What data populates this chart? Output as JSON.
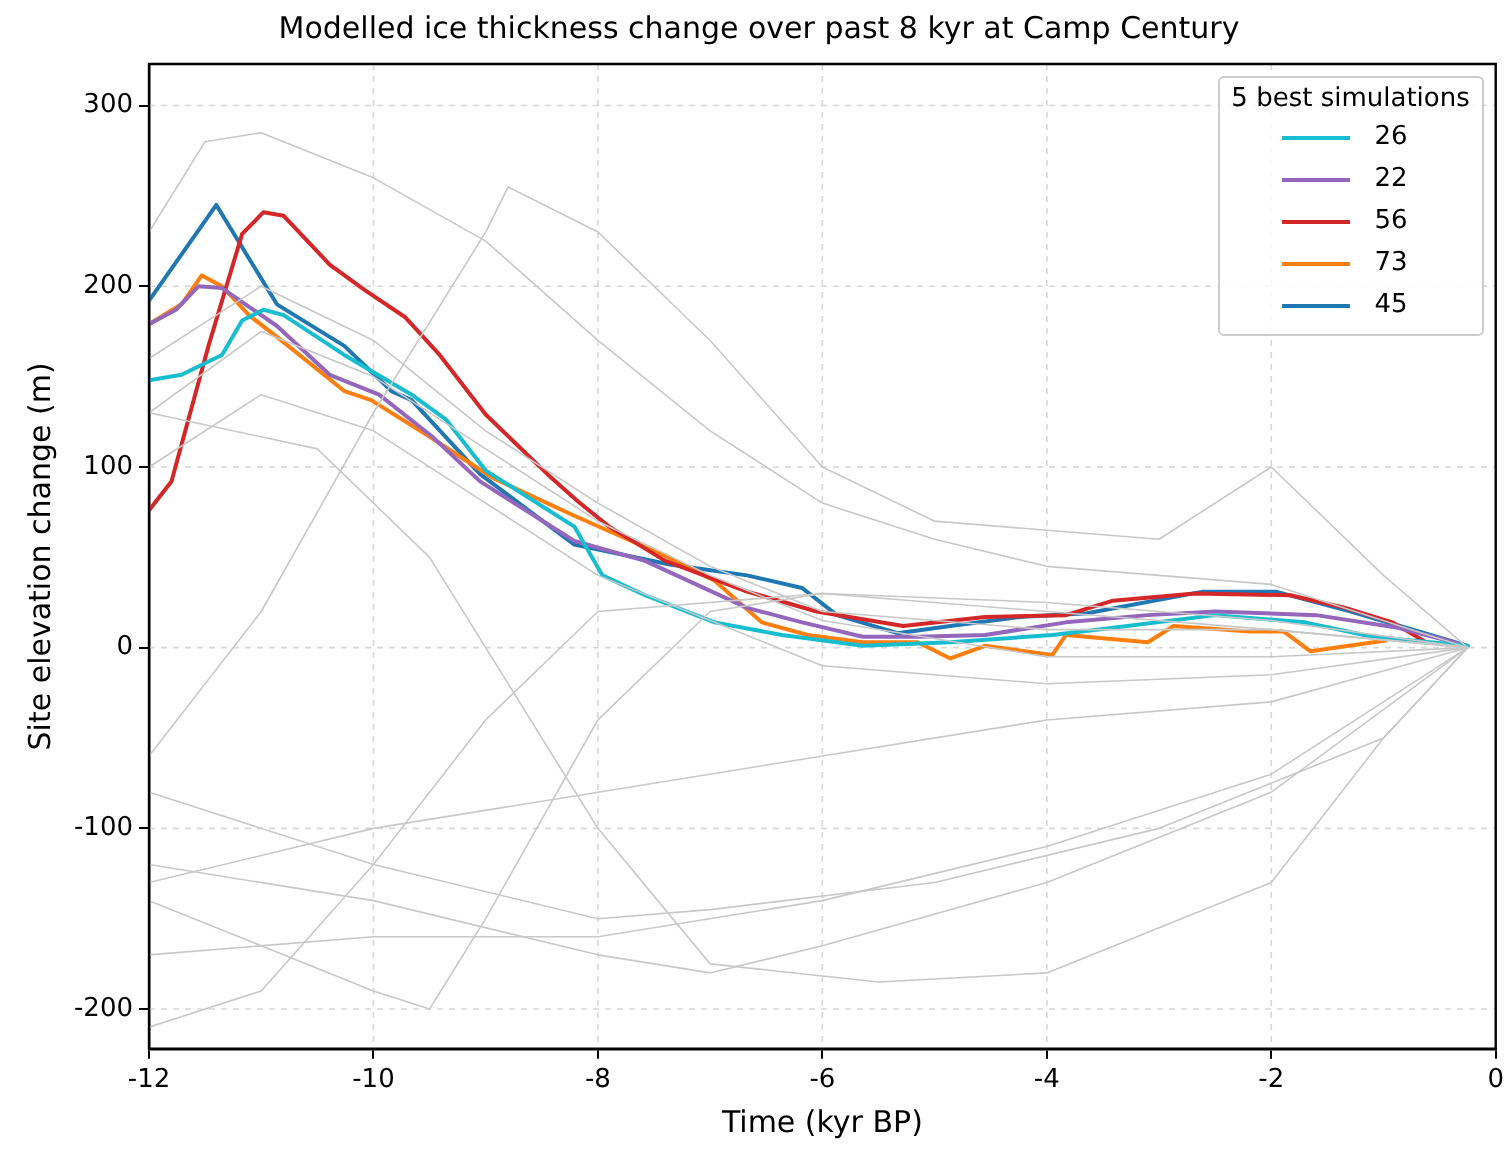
{
  "chart_data": {
    "type": "line",
    "title": "Modelled ice thickness change over past 8 kyr at Camp Century",
    "xlabel": "Time (kyr BP)",
    "ylabel": "Site elevation change (m)",
    "legend_title": "5 best simulations",
    "xlim": [
      -12,
      0
    ],
    "xticks": [
      -12,
      -10,
      -8,
      -6,
      -4,
      -2,
      0
    ],
    "ylim": [
      -222,
      323
    ],
    "yticks": [
      -200,
      -100,
      0,
      100,
      200,
      300
    ],
    "grid": true,
    "legend": "top right",
    "marker": "none",
    "line_style": "solid",
    "series": [
      {
        "color": "#c8c8c8",
        "x": [
          -12,
          -11.5,
          -11,
          -10,
          -9,
          -8,
          -7,
          -6,
          -5,
          -4,
          -2,
          -0.25
        ],
        "values": [
          230,
          280,
          285,
          260,
          225,
          170,
          120,
          80,
          60,
          45,
          35,
          0
        ]
      },
      {
        "color": "#c8c8c8",
        "x": [
          -12,
          -11,
          -10,
          -9,
          -8,
          -7,
          -6,
          -4,
          -2,
          -0.25
        ],
        "values": [
          160,
          200,
          170,
          120,
          80,
          45,
          20,
          10,
          10,
          0
        ]
      },
      {
        "color": "#c8c8c8",
        "x": [
          -12,
          -11,
          -10,
          -9,
          -8.8,
          -8,
          -7,
          -6,
          -5,
          -3,
          -2,
          -1,
          -0.25
        ],
        "values": [
          -60,
          20,
          130,
          230,
          255,
          230,
          170,
          100,
          70,
          60,
          100,
          40,
          0
        ]
      },
      {
        "color": "#c8c8c8",
        "x": [
          -12,
          -11,
          -10,
          -9,
          -8,
          -6,
          -4,
          -2,
          -0.25
        ],
        "values": [
          -210,
          -190,
          -120,
          -40,
          20,
          30,
          20,
          10,
          0
        ]
      },
      {
        "color": "#c8c8c8",
        "x": [
          -12,
          -10,
          -8,
          -7,
          -5,
          -3,
          -1,
          -0.25
        ],
        "values": [
          -80,
          -120,
          -150,
          -145,
          -130,
          -100,
          -50,
          0
        ]
      },
      {
        "color": "#c8c8c8",
        "x": [
          -12,
          -10.5,
          -9.5,
          -8,
          -7,
          -5.5,
          -4,
          -2,
          -1,
          -0.25
        ],
        "values": [
          130,
          110,
          50,
          -100,
          -175,
          -185,
          -180,
          -130,
          -50,
          0
        ]
      },
      {
        "color": "#c8c8c8",
        "x": [
          -12,
          -10,
          -8,
          -6,
          -4,
          -2,
          -0.25
        ],
        "values": [
          -170,
          -160,
          -160,
          -140,
          -110,
          -70,
          0
        ]
      },
      {
        "color": "#c8c8c8",
        "x": [
          -12,
          -10,
          -8,
          -6,
          -4,
          -2,
          -0.25
        ],
        "values": [
          -130,
          -100,
          -80,
          -60,
          -40,
          -30,
          0
        ]
      },
      {
        "color": "#c8c8c8",
        "x": [
          -12,
          -10,
          -9.5,
          -9,
          -8,
          -7,
          -6,
          -4,
          -2,
          -0.25
        ],
        "values": [
          -140,
          -190,
          -200,
          -150,
          -40,
          20,
          30,
          25,
          15,
          0
        ]
      },
      {
        "color": "#c8c8c8",
        "x": [
          -12,
          -11,
          -10,
          -9,
          -8,
          -6,
          -4,
          -2,
          -0.25
        ],
        "values": [
          100,
          140,
          120,
          80,
          40,
          -10,
          -20,
          -15,
          0
        ]
      },
      {
        "color": "#c8c8c8",
        "x": [
          -12,
          -11,
          -10,
          -9,
          -8,
          -7,
          -6,
          -4,
          -2,
          -0.25
        ],
        "values": [
          130,
          175,
          150,
          110,
          70,
          40,
          15,
          -5,
          -5,
          0
        ]
      },
      {
        "color": "#c8c8c8",
        "x": [
          -12,
          -10,
          -8,
          -7,
          -6,
          -4,
          -2,
          -0.25
        ],
        "values": [
          -120,
          -140,
          -170,
          -180,
          -165,
          -130,
          -80,
          0
        ]
      },
      {
        "name": "26",
        "color": "#17becf",
        "x": [
          -12,
          -11.71,
          -11.35,
          -11.17,
          -10.98,
          -10.8,
          -10.26,
          -9.66,
          -9.35,
          -9.0,
          -8.21,
          -7.96,
          -7.58,
          -6.96,
          -6.36,
          -5.64,
          -4.86,
          -3.95,
          -3.41,
          -2.5,
          -1.7,
          -1.1,
          -0.25
        ],
        "values": [
          148,
          151,
          162,
          181,
          187,
          184,
          162,
          140,
          126,
          98,
          67,
          40,
          29,
          14,
          7,
          1,
          3,
          7,
          11,
          18,
          14,
          6,
          1
        ]
      },
      {
        "name": "22",
        "color": "#9467bd",
        "x": [
          -12,
          -11.76,
          -11.56,
          -11.35,
          -10.86,
          -10.39,
          -9.95,
          -9.48,
          -9.05,
          -8.21,
          -7.58,
          -6.67,
          -6.18,
          -5.64,
          -5.15,
          -4.55,
          -3.83,
          -3.1,
          -2.5,
          -1.6,
          -0.87,
          -0.25
        ],
        "values": [
          179,
          187,
          200,
          199,
          178,
          151,
          140,
          117,
          92,
          59,
          48,
          22,
          14,
          6,
          6,
          7,
          14,
          18,
          20,
          18,
          11,
          1
        ]
      },
      {
        "name": "56",
        "color": "#d62728",
        "x": [
          -12,
          -11.8,
          -11.47,
          -11.17,
          -10.98,
          -10.8,
          -10.39,
          -10.08,
          -9.72,
          -9.41,
          -9.0,
          -8.45,
          -8.18,
          -7.9,
          -7.4,
          -6.67,
          -6.05,
          -5.28,
          -4.55,
          -3.83,
          -3.41,
          -2.68,
          -1.83,
          -1.34,
          -0.92,
          -0.62
        ],
        "values": [
          76,
          92,
          167,
          229,
          241,
          239,
          212,
          198,
          183,
          162,
          129,
          96,
          81,
          67,
          48,
          31,
          20,
          12,
          17,
          18,
          26,
          30,
          29,
          22,
          14,
          3
        ]
      },
      {
        "name": "73",
        "color": "#ff7f0e",
        "x": [
          -12,
          -11.71,
          -11.53,
          -11.35,
          -11.11,
          -10.86,
          -10.26,
          -10.02,
          -9.53,
          -8.94,
          -8.21,
          -7.41,
          -6.96,
          -6.54,
          -6.13,
          -5.64,
          -5.15,
          -4.86,
          -4.55,
          -3.95,
          -3.83,
          -3.1,
          -2.87,
          -2.19,
          -1.89,
          -1.65,
          -0.98
        ],
        "values": [
          179,
          190,
          206,
          200,
          184,
          172,
          142,
          137,
          118,
          94,
          73,
          51,
          37,
          14,
          7,
          3,
          3,
          -6,
          1,
          -4,
          7,
          3,
          12,
          9,
          9,
          -2,
          4
        ]
      },
      {
        "name": "45",
        "color": "#1f77b4",
        "x": [
          -12,
          -11.4,
          -10.86,
          -10.26,
          -9.84,
          -9.66,
          -9.05,
          -8.21,
          -7.36,
          -6.67,
          -6.18,
          -5.87,
          -5.33,
          -4.86,
          -4.24,
          -3.64,
          -2.61,
          -1.96,
          -1.29,
          -0.8,
          -0.25
        ],
        "values": [
          192,
          245,
          190,
          167,
          142,
          137,
          96,
          57,
          46,
          40,
          33,
          18,
          8,
          12,
          17,
          19,
          31,
          31,
          20,
          11,
          1
        ]
      }
    ]
  }
}
